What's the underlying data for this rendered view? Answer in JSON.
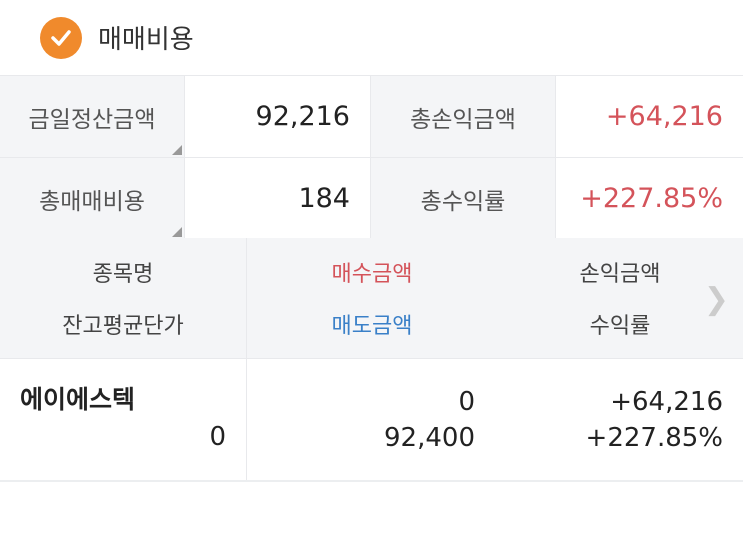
{
  "header": {
    "title": "매매비용",
    "icon": "check-circle-icon",
    "accent": "#f08a2c"
  },
  "summary": [
    {
      "label": "금일정산금액",
      "value": "92,216",
      "label2": "총손익금액",
      "value2": "+64,216"
    },
    {
      "label": "총매매비용",
      "value": "184",
      "label2": "총수익률",
      "value2": "+227.85%"
    }
  ],
  "columns": {
    "name": "종목명",
    "avg_price": "잔고평균단가",
    "buy": "매수금액",
    "sell": "매도금액",
    "pnl": "손익금액",
    "rate": "수익률"
  },
  "rows": [
    {
      "name": "에이에스텍",
      "avg_price": "0",
      "buy": "0",
      "sell": "92,400",
      "pnl": "+64,216",
      "rate": "+227.85%"
    }
  ],
  "colors": {
    "positive": "#d4535a",
    "buy": "#d4535a",
    "sell": "#3a80c8"
  }
}
